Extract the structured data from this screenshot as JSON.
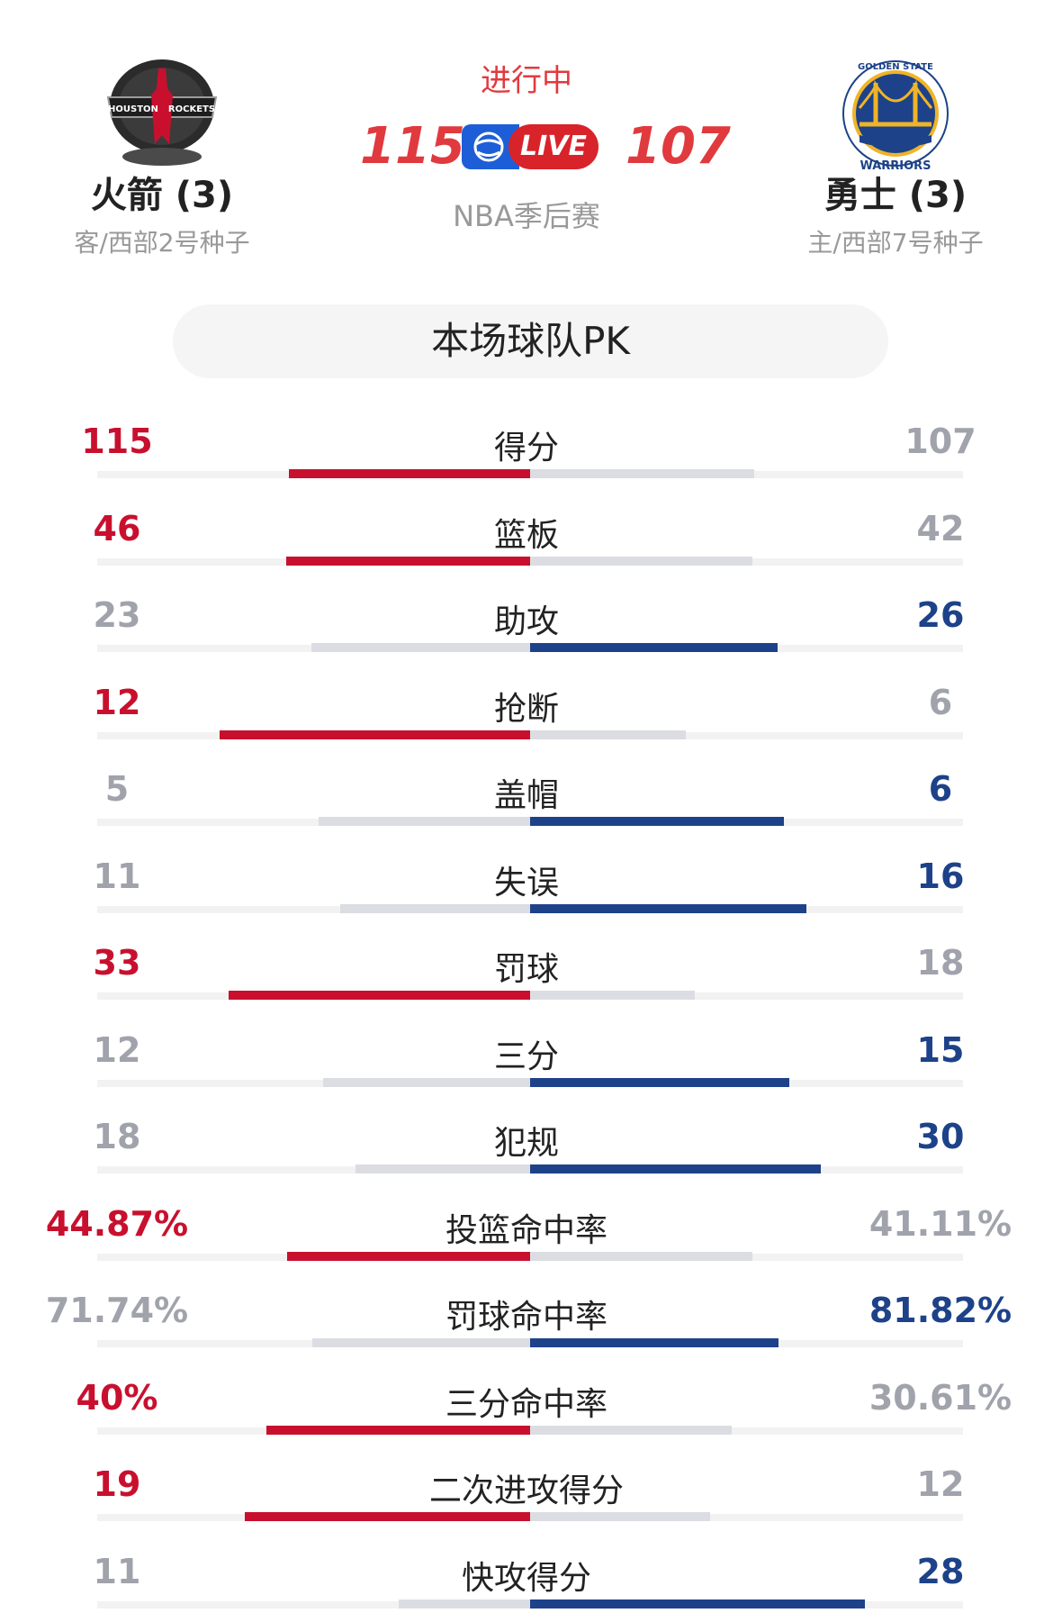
{
  "game": {
    "status": "进行中",
    "league": "NBA季后赛",
    "live_label": "LIVE"
  },
  "away_team": {
    "name": "火箭 (3)",
    "seed": "客/西部2号种子",
    "score": "115",
    "logo_text_left": "HOUSTON",
    "logo_text_right": "ROCKETS",
    "logo_icon": "rockets-logo-icon",
    "color": "#c8102e"
  },
  "home_team": {
    "name": "勇士 (3)",
    "seed": "主/西部7号种子",
    "score": "107",
    "logo_text_top": "GOLDEN STATE",
    "logo_text_bottom": "WARRIORS",
    "logo_icon": "warriors-logo-icon",
    "color": "#1d4289"
  },
  "pk_title": "本场球队PK",
  "stats": [
    {
      "label": "得分",
      "away": "115",
      "home": "107",
      "away_value": 115,
      "home_value": 107,
      "winner": "away"
    },
    {
      "label": "篮板",
      "away": "46",
      "home": "42",
      "away_value": 46,
      "home_value": 42,
      "winner": "away"
    },
    {
      "label": "助攻",
      "away": "23",
      "home": "26",
      "away_value": 23,
      "home_value": 26,
      "winner": "home"
    },
    {
      "label": "抢断",
      "away": "12",
      "home": "6",
      "away_value": 12,
      "home_value": 6,
      "winner": "away"
    },
    {
      "label": "盖帽",
      "away": "5",
      "home": "6",
      "away_value": 5,
      "home_value": 6,
      "winner": "home"
    },
    {
      "label": "失误",
      "away": "11",
      "home": "16",
      "away_value": 11,
      "home_value": 16,
      "winner": "home"
    },
    {
      "label": "罚球",
      "away": "33",
      "home": "18",
      "away_value": 33,
      "home_value": 18,
      "winner": "away"
    },
    {
      "label": "三分",
      "away": "12",
      "home": "15",
      "away_value": 12,
      "home_value": 15,
      "winner": "home"
    },
    {
      "label": "犯规",
      "away": "18",
      "home": "30",
      "away_value": 18,
      "home_value": 30,
      "winner": "home"
    },
    {
      "label": "投篮命中率",
      "away": "44.87%",
      "home": "41.11%",
      "away_value": 44.87,
      "home_value": 41.11,
      "winner": "away"
    },
    {
      "label": "罚球命中率",
      "away": "71.74%",
      "home": "81.82%",
      "away_value": 71.74,
      "home_value": 81.82,
      "winner": "home"
    },
    {
      "label": "三分命中率",
      "away": "40%",
      "home": "30.61%",
      "away_value": 40,
      "home_value": 30.61,
      "winner": "away"
    },
    {
      "label": "二次进攻得分",
      "away": "19",
      "home": "12",
      "away_value": 19,
      "home_value": 12,
      "winner": "away"
    },
    {
      "label": "快攻得分",
      "away": "11",
      "home": "28",
      "away_value": 11,
      "home_value": 28,
      "winner": "home"
    }
  ],
  "colors": {
    "away_accent": "#c8102e",
    "home_accent": "#1d4289",
    "lose_text": "#a0a3ab",
    "lose_bar": "#dcdde2",
    "status_red": "#e03a3e"
  }
}
